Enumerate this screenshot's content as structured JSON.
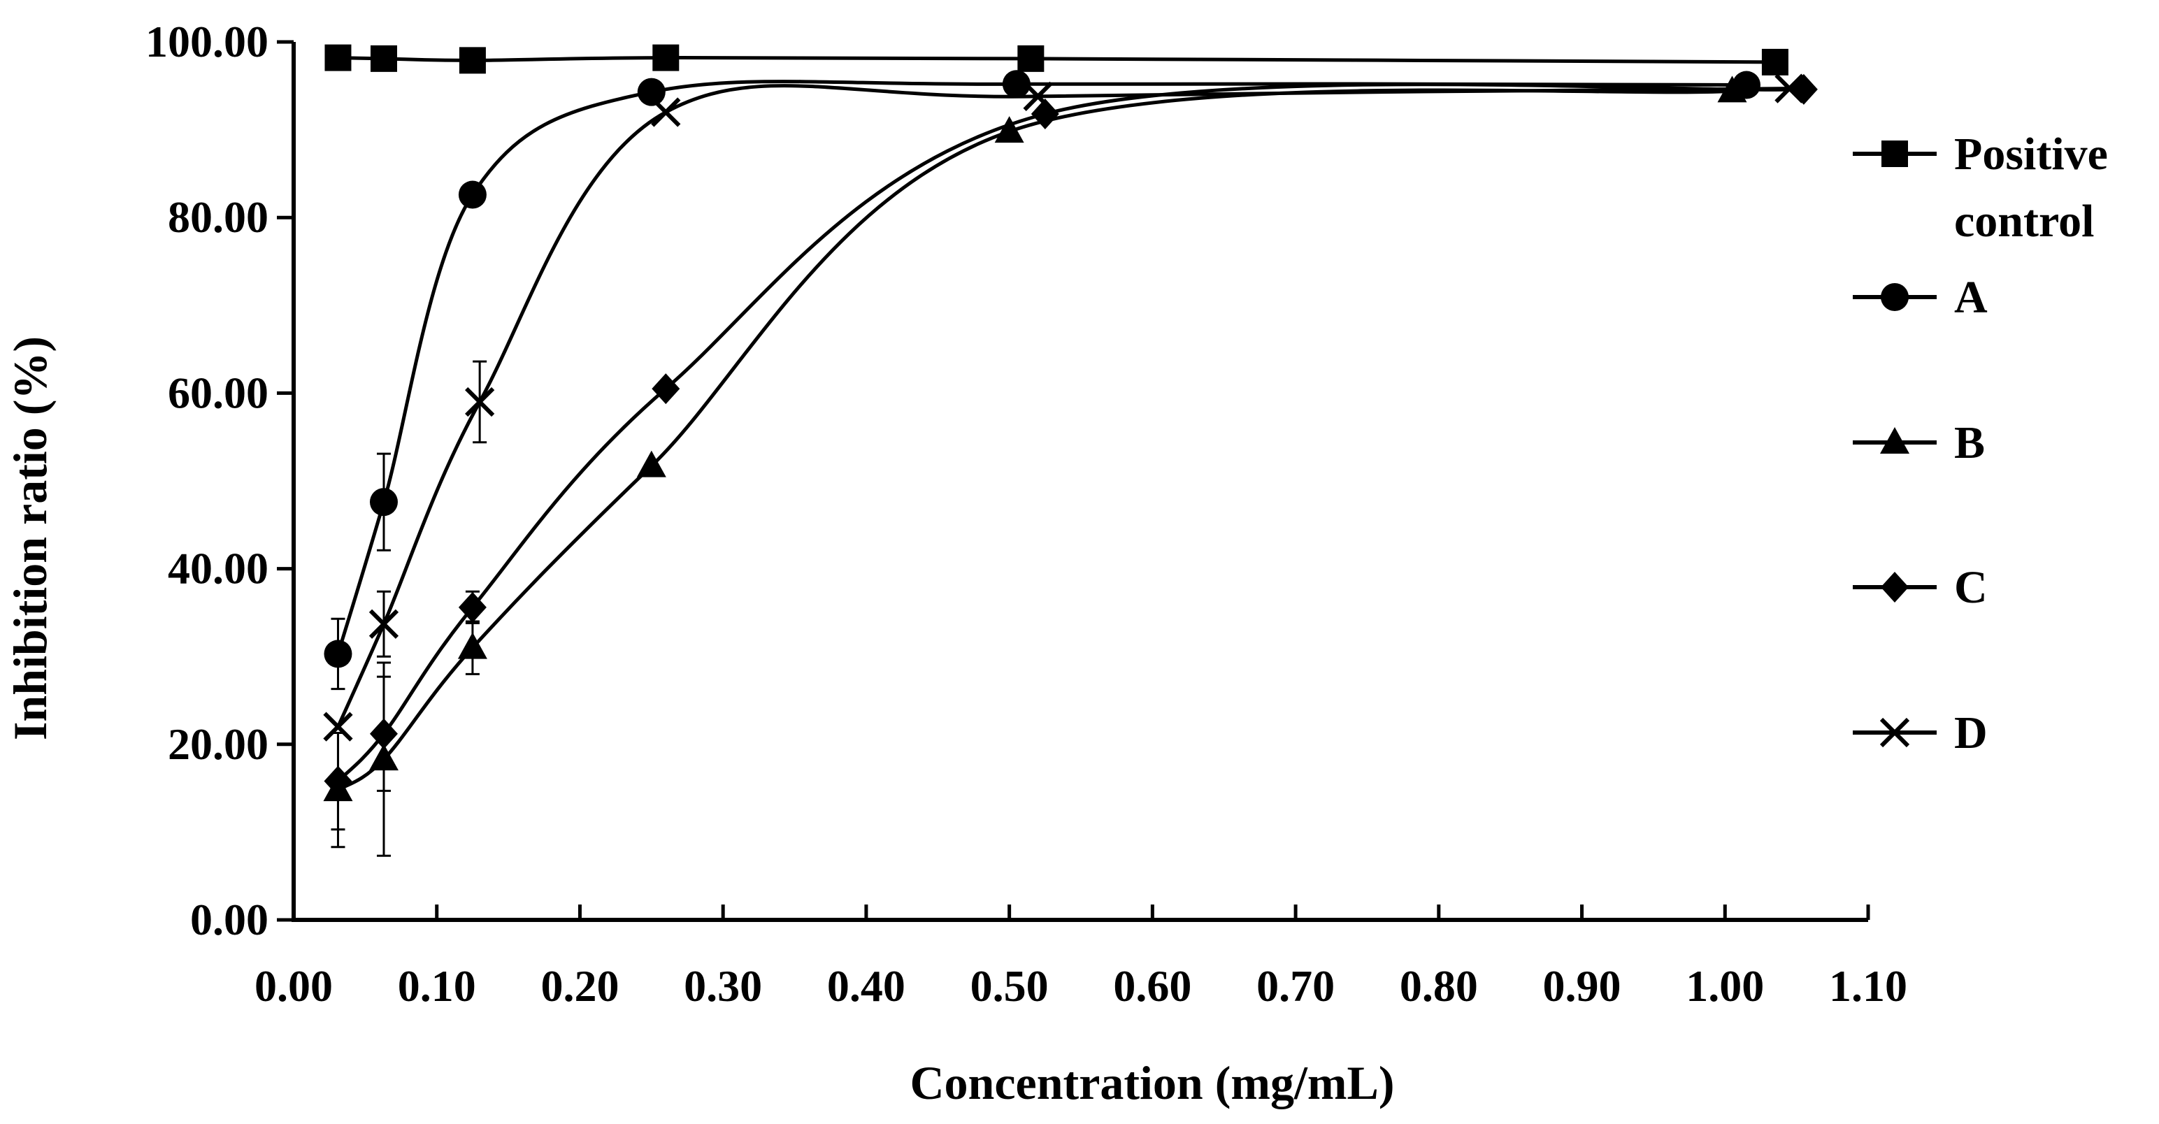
{
  "chart_data": {
    "type": "line",
    "title": "",
    "xlabel": "Concentration (mg/mL)",
    "ylabel": "Inhibition ratio (%)",
    "xlim": [
      0,
      1.1
    ],
    "ylim": [
      0,
      100
    ],
    "x_ticks": [
      "0.00",
      "0.10",
      "0.20",
      "0.30",
      "0.40",
      "0.50",
      "0.60",
      "0.70",
      "0.80",
      "0.90",
      "1.00",
      "1.10"
    ],
    "y_ticks": [
      "0.00",
      "20.00",
      "40.00",
      "60.00",
      "80.00",
      "100.00"
    ],
    "grid": false,
    "legend_position": "right",
    "series": [
      {
        "name": "Positive control",
        "legend_lines": [
          "Positive",
          "control"
        ],
        "marker": "square",
        "x": [
          0.031,
          0.063,
          0.125,
          0.26,
          0.515,
          1.035
        ],
        "y": [
          98.2,
          98.1,
          97.9,
          98.2,
          98.1,
          97.7
        ],
        "err": [
          0,
          0,
          0,
          0,
          0,
          0
        ]
      },
      {
        "name": "A",
        "legend_lines": [
          "A"
        ],
        "marker": "circle",
        "x": [
          0.031,
          0.063,
          0.125,
          0.25,
          0.505,
          1.015
        ],
        "y": [
          30.3,
          47.6,
          82.6,
          94.3,
          95.2,
          95.1
        ],
        "err": [
          4.0,
          5.5,
          0,
          0,
          0,
          0
        ]
      },
      {
        "name": "B",
        "legend_lines": [
          "B"
        ],
        "marker": "triangle",
        "x": [
          0.031,
          0.063,
          0.125,
          0.25,
          0.5,
          1.005
        ],
        "y": [
          14.8,
          18.3,
          31.0,
          51.7,
          89.8,
          94.4
        ],
        "err": [
          6.5,
          11.0,
          3.0,
          0,
          0,
          0
        ]
      },
      {
        "name": "C",
        "legend_lines": [
          "C"
        ],
        "marker": "diamond",
        "x": [
          0.031,
          0.063,
          0.125,
          0.26,
          0.525,
          1.055
        ],
        "y": [
          15.8,
          21.2,
          35.6,
          60.5,
          91.8,
          94.6
        ],
        "err": [
          5.5,
          6.5,
          1.8,
          0,
          0,
          0
        ]
      },
      {
        "name": "D",
        "legend_lines": [
          "D"
        ],
        "marker": "x",
        "x": [
          0.031,
          0.063,
          0.13,
          0.26,
          0.52,
          1.045
        ],
        "y": [
          22.0,
          33.7,
          59.0,
          92.0,
          93.8,
          94.7
        ],
        "err": [
          0,
          3.7,
          4.6,
          0,
          0,
          0
        ]
      }
    ]
  }
}
